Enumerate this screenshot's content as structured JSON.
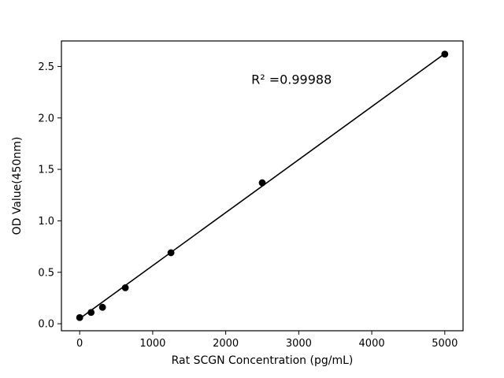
{
  "chart_data": {
    "type": "scatter",
    "x": [
      0,
      156.25,
      312.5,
      625,
      1250,
      2500,
      5000
    ],
    "y": [
      0.06,
      0.11,
      0.16,
      0.35,
      0.69,
      1.37,
      2.62
    ],
    "fit_line": {
      "x": [
        0,
        5000
      ],
      "y": [
        0.05,
        2.625
      ]
    },
    "title": "",
    "xlabel": "Rat SCGN Concentration (pg/mL)",
    "ylabel": "OD Value(450nm)",
    "xlim": [
      -250,
      5250
    ],
    "ylim": [
      -0.068,
      2.748
    ],
    "xticks": [
      0,
      1000,
      2000,
      3000,
      4000,
      5000
    ],
    "yticks": [
      0.0,
      0.5,
      1.0,
      1.5,
      2.0,
      2.5
    ],
    "grid": false,
    "legend_position": "none",
    "marker_color": "#000000",
    "line_color": "#000000",
    "annotation": {
      "label": "R² =0.99988",
      "r_squared_value": 0.99988,
      "x": 2350,
      "y": 2.33
    }
  }
}
